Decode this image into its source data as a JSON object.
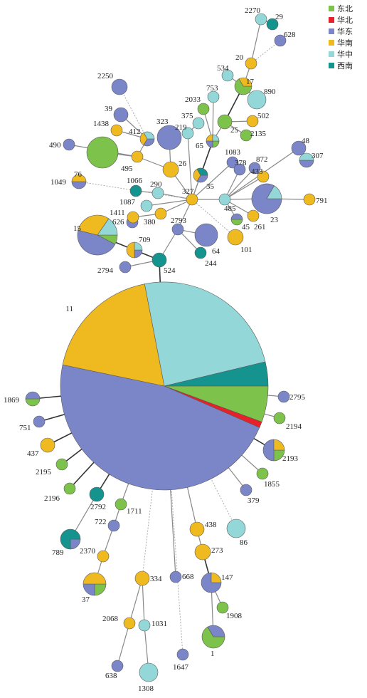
{
  "legend": {
    "items": [
      {
        "label": "东北",
        "color": "#7dc24b"
      },
      {
        "label": "华北",
        "color": "#e8202a"
      },
      {
        "label": "华东",
        "color": "#7b86c8"
      },
      {
        "label": "华南",
        "color": "#efb920"
      },
      {
        "label": "华中",
        "color": "#93d7d8"
      },
      {
        "label": "西南",
        "color": "#15938f"
      }
    ]
  },
  "nodes": [
    {
      "id": "11",
      "f": [
        6,
        1,
        50,
        20,
        26,
        4
      ]
    },
    {
      "id": "15",
      "f": [
        1,
        0,
        6,
        4,
        2,
        0
      ]
    },
    {
      "id": "76",
      "f": [
        1,
        0,
        0,
        0,
        0,
        0
      ]
    },
    {
      "id": "23",
      "f": [
        0,
        0,
        5,
        0,
        1,
        0
      ]
    },
    {
      "id": "64",
      "f": [
        0,
        0,
        1,
        0,
        0,
        0
      ]
    },
    {
      "id": "323",
      "f": [
        0,
        0,
        1,
        0,
        0,
        0
      ]
    },
    {
      "id": "2250",
      "f": [
        0,
        0,
        1,
        0,
        0,
        0
      ]
    },
    {
      "id": "890",
      "f": [
        0,
        0,
        0,
        0,
        1,
        0
      ]
    },
    {
      "id": "17",
      "f": [
        2,
        0,
        0,
        1,
        0,
        0
      ]
    },
    {
      "id": "26",
      "f": [
        0,
        0,
        0,
        1,
        0,
        0
      ]
    },
    {
      "id": "101",
      "f": [
        0,
        0,
        0,
        1,
        0,
        0
      ]
    },
    {
      "id": "709",
      "f": [
        0,
        0,
        1,
        2,
        1,
        0
      ]
    },
    {
      "id": "524",
      "f": [
        0,
        0,
        0,
        0,
        0,
        1
      ]
    },
    {
      "id": "2794",
      "f": [
        0,
        0,
        1,
        0,
        0,
        0
      ]
    },
    {
      "id": "626",
      "f": [
        0,
        0,
        1,
        0,
        0,
        0
      ]
    },
    {
      "id": "1411",
      "f": [
        0,
        0,
        0,
        1,
        0,
        0
      ]
    },
    {
      "id": "2793",
      "f": [
        0,
        0,
        1,
        0,
        0,
        0
      ]
    },
    {
      "id": "244",
      "f": [
        0,
        0,
        0,
        0,
        0,
        1
      ]
    },
    {
      "id": "327",
      "f": [
        0,
        0,
        0,
        1,
        0,
        0
      ]
    },
    {
      "id": "380",
      "f": [
        0,
        0,
        0,
        1,
        0,
        0
      ]
    },
    {
      "id": "1087",
      "f": [
        0,
        0,
        0,
        0,
        1,
        0
      ]
    },
    {
      "id": "290",
      "f": [
        0,
        0,
        0,
        0,
        1,
        0
      ]
    },
    {
      "id": "1066",
      "f": [
        0,
        0,
        0,
        0,
        0,
        1
      ]
    },
    {
      "id": "1049",
      "f": [
        0,
        0,
        1,
        1,
        0,
        0
      ]
    },
    {
      "id": "490",
      "f": [
        0,
        0,
        1,
        0,
        0,
        0
      ]
    },
    {
      "id": "495",
      "f": [
        0,
        0,
        0,
        1,
        0,
        0
      ]
    },
    {
      "id": "412",
      "f": [
        0,
        0,
        1,
        1,
        1,
        0
      ]
    },
    {
      "id": "1438",
      "f": [
        0,
        0,
        0,
        1,
        0,
        0
      ]
    },
    {
      "id": "39",
      "f": [
        0,
        0,
        1,
        0,
        0,
        0
      ]
    },
    {
      "id": "219",
      "f": [
        0,
        0,
        0,
        0,
        1,
        0
      ]
    },
    {
      "id": "375",
      "f": [
        0,
        0,
        0,
        0,
        1,
        0
      ]
    },
    {
      "id": "753",
      "f": [
        0,
        0,
        0,
        0,
        1,
        0
      ]
    },
    {
      "id": "2033",
      "f": [
        1,
        0,
        0,
        0,
        0,
        0
      ]
    },
    {
      "id": "534",
      "f": [
        0,
        0,
        0,
        0,
        1,
        0
      ]
    },
    {
      "id": "20",
      "f": [
        0,
        0,
        0,
        1,
        0,
        0
      ]
    },
    {
      "id": "2270",
      "f": [
        0,
        0,
        0,
        0,
        1,
        0
      ]
    },
    {
      "id": "29",
      "f": [
        0,
        0,
        0,
        0,
        0,
        1
      ]
    },
    {
      "id": "628",
      "f": [
        0,
        0,
        1,
        0,
        0,
        0
      ]
    },
    {
      "id": "25",
      "f": [
        1,
        0,
        0,
        0,
        0,
        0
      ]
    },
    {
      "id": "502",
      "f": [
        0,
        0,
        0,
        1,
        0,
        0
      ]
    },
    {
      "id": "2135",
      "f": [
        1,
        0,
        0,
        0,
        0,
        0
      ]
    },
    {
      "id": "65",
      "f": [
        1,
        0,
        1,
        1,
        1,
        0
      ]
    },
    {
      "id": "35",
      "f": [
        0,
        0,
        1,
        1,
        0,
        1
      ]
    },
    {
      "id": "1083",
      "f": [
        0,
        0,
        1,
        0,
        0,
        0
      ]
    },
    {
      "id": "378",
      "f": [
        0,
        0,
        1,
        0,
        0,
        0
      ]
    },
    {
      "id": "872",
      "f": [
        0,
        0,
        1,
        0,
        0,
        0
      ]
    },
    {
      "id": "433",
      "f": [
        0,
        0,
        0,
        1,
        0,
        0
      ]
    },
    {
      "id": "48",
      "f": [
        0,
        0,
        1,
        0,
        0,
        0
      ]
    },
    {
      "id": "307",
      "f": [
        0,
        0,
        1,
        0,
        1,
        0
      ]
    },
    {
      "id": "791",
      "f": [
        0,
        0,
        0,
        1,
        0,
        0
      ]
    },
    {
      "id": "485",
      "f": [
        0,
        0,
        0,
        0,
        1,
        0
      ]
    },
    {
      "id": "261",
      "f": [
        0,
        0,
        0,
        1,
        0,
        0
      ]
    },
    {
      "id": "45",
      "f": [
        1,
        0,
        1,
        0,
        0,
        0
      ]
    },
    {
      "id": "1869",
      "f": [
        1,
        0,
        1,
        0,
        0,
        0
      ]
    },
    {
      "id": "751",
      "f": [
        0,
        0,
        1,
        0,
        0,
        0
      ]
    },
    {
      "id": "437",
      "f": [
        0,
        0,
        0,
        1,
        0,
        0
      ]
    },
    {
      "id": "2195",
      "f": [
        1,
        0,
        0,
        0,
        0,
        0
      ]
    },
    {
      "id": "2196",
      "f": [
        1,
        0,
        0,
        0,
        0,
        0
      ]
    },
    {
      "id": "2792",
      "f": [
        0,
        0,
        0,
        0,
        0,
        1
      ]
    },
    {
      "id": "1711",
      "f": [
        1,
        0,
        0,
        0,
        0,
        0
      ]
    },
    {
      "id": "722",
      "f": [
        0,
        0,
        1,
        0,
        0,
        0
      ]
    },
    {
      "id": "789",
      "f": [
        0,
        0,
        1,
        0,
        0,
        3
      ]
    },
    {
      "id": "2370",
      "f": [
        0,
        0,
        0,
        1,
        0,
        0
      ]
    },
    {
      "id": "37",
      "f": [
        1,
        0,
        1,
        2,
        0,
        0
      ]
    },
    {
      "id": "334",
      "f": [
        0,
        0,
        0,
        1,
        0,
        0
      ]
    },
    {
      "id": "668",
      "f": [
        0,
        0,
        1,
        0,
        0,
        0
      ]
    },
    {
      "id": "2068",
      "f": [
        0,
        0,
        0,
        1,
        0,
        0
      ]
    },
    {
      "id": "1031",
      "f": [
        0,
        0,
        0,
        0,
        1,
        0
      ]
    },
    {
      "id": "638",
      "f": [
        0,
        0,
        1,
        0,
        0,
        0
      ]
    },
    {
      "id": "1308",
      "f": [
        0,
        0,
        0,
        0,
        1,
        0
      ]
    },
    {
      "id": "1647",
      "f": [
        0,
        0,
        1,
        0,
        0,
        0
      ]
    },
    {
      "id": "438",
      "f": [
        0,
        0,
        0,
        1,
        0,
        0
      ]
    },
    {
      "id": "273",
      "f": [
        0,
        0,
        0,
        1,
        0,
        0
      ]
    },
    {
      "id": "147",
      "f": [
        0,
        0,
        3,
        1,
        0,
        0
      ]
    },
    {
      "id": "1908",
      "f": [
        1,
        0,
        0,
        0,
        0,
        0
      ]
    },
    {
      "id": "1",
      "f": [
        2,
        0,
        1,
        0,
        0,
        0
      ]
    },
    {
      "id": "86",
      "f": [
        0,
        0,
        0,
        0,
        1,
        0
      ]
    },
    {
      "id": "379",
      "f": [
        0,
        0,
        1,
        0,
        0,
        0
      ]
    },
    {
      "id": "1855",
      "f": [
        1,
        0,
        0,
        0,
        0,
        0
      ]
    },
    {
      "id": "2193",
      "f": [
        1,
        0,
        2,
        1,
        0,
        0
      ]
    },
    {
      "id": "2194",
      "f": [
        1,
        0,
        0,
        0,
        0,
        0
      ]
    },
    {
      "id": "2795",
      "f": [
        0,
        0,
        1,
        0,
        0,
        0
      ]
    }
  ],
  "edges": [
    [
      "11",
      "524",
      "thick"
    ],
    [
      "524",
      "709",
      "thick"
    ],
    [
      "709",
      "15",
      "thick"
    ],
    [
      "524",
      "2794",
      "normal"
    ],
    [
      "524",
      "2793",
      "normal"
    ],
    [
      "2793",
      "327",
      "normal"
    ],
    [
      "2793",
      "64",
      "normal"
    ],
    [
      "2793",
      "244",
      "normal"
    ],
    [
      "327",
      "380",
      "normal"
    ],
    [
      "380",
      "1411",
      "normal"
    ],
    [
      "1411",
      "626",
      "normal"
    ],
    [
      "327",
      "1087",
      "normal"
    ],
    [
      "327",
      "290",
      "normal"
    ],
    [
      "290",
      "1066",
      "normal"
    ],
    [
      "327",
      "26",
      "normal"
    ],
    [
      "26",
      "495",
      "normal"
    ],
    [
      "495",
      "76",
      "normal"
    ],
    [
      "495",
      "490",
      "normal"
    ],
    [
      "495",
      "412",
      "normal"
    ],
    [
      "412",
      "1438",
      "normal"
    ],
    [
      "412",
      "39",
      "normal"
    ],
    [
      "412",
      "2250",
      "dotted"
    ],
    [
      "26",
      "323",
      "normal"
    ],
    [
      "327",
      "219",
      "normal"
    ],
    [
      "219",
      "375",
      "normal"
    ],
    [
      "327",
      "65",
      "normal"
    ],
    [
      "65",
      "753",
      "normal"
    ],
    [
      "65",
      "2033",
      "normal"
    ],
    [
      "65",
      "25",
      "normal"
    ],
    [
      "25",
      "17",
      "thick"
    ],
    [
      "17",
      "534",
      "normal"
    ],
    [
      "17",
      "890",
      "normal"
    ],
    [
      "17",
      "20",
      "normal"
    ],
    [
      "20",
      "2270",
      "normal"
    ],
    [
      "2270",
      "29",
      "normal"
    ],
    [
      "20",
      "628",
      "dotted"
    ],
    [
      "25",
      "502",
      "normal"
    ],
    [
      "25",
      "2135",
      "normal"
    ],
    [
      "327",
      "35",
      "normal"
    ],
    [
      "35",
      "65",
      "thick"
    ],
    [
      "327",
      "1083",
      "normal"
    ],
    [
      "327",
      "485",
      "normal"
    ],
    [
      "485",
      "378",
      "normal"
    ],
    [
      "485",
      "872",
      "normal"
    ],
    [
      "485",
      "433",
      "normal"
    ],
    [
      "485",
      "48",
      "normal"
    ],
    [
      "48",
      "307",
      "normal"
    ],
    [
      "485",
      "23",
      "normal"
    ],
    [
      "23",
      "791",
      "normal"
    ],
    [
      "485",
      "261",
      "normal"
    ],
    [
      "485",
      "45",
      "normal"
    ],
    [
      "327",
      "101",
      "dotted"
    ],
    [
      "327",
      "1049",
      "dotted"
    ],
    [
      "11",
      "1869",
      "thick"
    ],
    [
      "11",
      "751",
      "thick"
    ],
    [
      "11",
      "437",
      "thick"
    ],
    [
      "11",
      "2195",
      "thick"
    ],
    [
      "11",
      "2196",
      "thick"
    ],
    [
      "11",
      "2792",
      "thick"
    ],
    [
      "2792",
      "789",
      "normal"
    ],
    [
      "11",
      "1711",
      "normal"
    ],
    [
      "1711",
      "722",
      "normal"
    ],
    [
      "722",
      "2370",
      "normal"
    ],
    [
      "2370",
      "37",
      "normal"
    ],
    [
      "11",
      "334",
      "dotted"
    ],
    [
      "334",
      "2068",
      "normal"
    ],
    [
      "334",
      "1031",
      "normal"
    ],
    [
      "1031",
      "1308",
      "normal"
    ],
    [
      "2068",
      "638",
      "normal"
    ],
    [
      "11",
      "668",
      "normal"
    ],
    [
      "11",
      "1647",
      "dotted"
    ],
    [
      "11",
      "438",
      "normal"
    ],
    [
      "438",
      "273",
      "normal"
    ],
    [
      "273",
      "147",
      "thick"
    ],
    [
      "147",
      "1908",
      "normal"
    ],
    [
      "147",
      "1",
      "normal"
    ],
    [
      "11",
      "86",
      "dotted"
    ],
    [
      "11",
      "379",
      "normal"
    ],
    [
      "11",
      "1855",
      "normal"
    ],
    [
      "11",
      "2193",
      "thick"
    ],
    [
      "11",
      "2194",
      "normal"
    ],
    [
      "11",
      "2795",
      "normal"
    ]
  ]
}
